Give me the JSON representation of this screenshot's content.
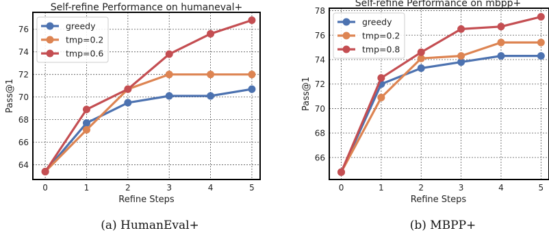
{
  "chart_data": [
    {
      "type": "line",
      "title": "Self-refine Performance on humaneval+",
      "xlabel": "Refine Steps",
      "ylabel": "Pass@1",
      "x": [
        0,
        1,
        2,
        3,
        4,
        5
      ],
      "xlim": [
        -0.3,
        5.2
      ],
      "ylim": [
        62.7,
        77.5
      ],
      "yticks": [
        64,
        66,
        68,
        70,
        72,
        74,
        76
      ],
      "grid": true,
      "legend": "top-left",
      "series": [
        {
          "name": "greedy",
          "color": "#4c72b0",
          "values": [
            63.4,
            67.7,
            69.5,
            70.1,
            70.1,
            70.7
          ]
        },
        {
          "name": "tmp=0.2",
          "color": "#dd8452",
          "values": [
            63.4,
            67.1,
            70.7,
            72.0,
            72.0,
            72.0
          ]
        },
        {
          "name": "tmp=0.6",
          "color": "#c44e52",
          "values": [
            63.4,
            68.9,
            70.7,
            73.8,
            75.6,
            76.8
          ]
        }
      ],
      "caption": "(a) HumanEval+"
    },
    {
      "type": "line",
      "title": "Self-refine Performance on mbpp+",
      "xlabel": "Refine Steps",
      "ylabel": "Pass@1",
      "x": [
        0,
        1,
        2,
        3,
        4,
        5
      ],
      "xlim": [
        -0.3,
        5.2
      ],
      "ylim": [
        64.2,
        78.2
      ],
      "yticks": [
        66,
        68,
        70,
        72,
        74,
        76,
        78
      ],
      "grid": true,
      "legend": "top-left",
      "series": [
        {
          "name": "greedy",
          "color": "#4c72b0",
          "values": [
            64.8,
            72.0,
            73.3,
            73.8,
            74.3,
            74.3
          ]
        },
        {
          "name": "tmp=0.2",
          "color": "#dd8452",
          "values": [
            64.8,
            70.9,
            74.1,
            74.3,
            75.4,
            75.4
          ]
        },
        {
          "name": "tmp=0.8",
          "color": "#c44e52",
          "values": [
            64.8,
            72.5,
            74.6,
            76.5,
            76.7,
            77.5
          ]
        }
      ],
      "caption": "(b) MBPP+"
    }
  ]
}
